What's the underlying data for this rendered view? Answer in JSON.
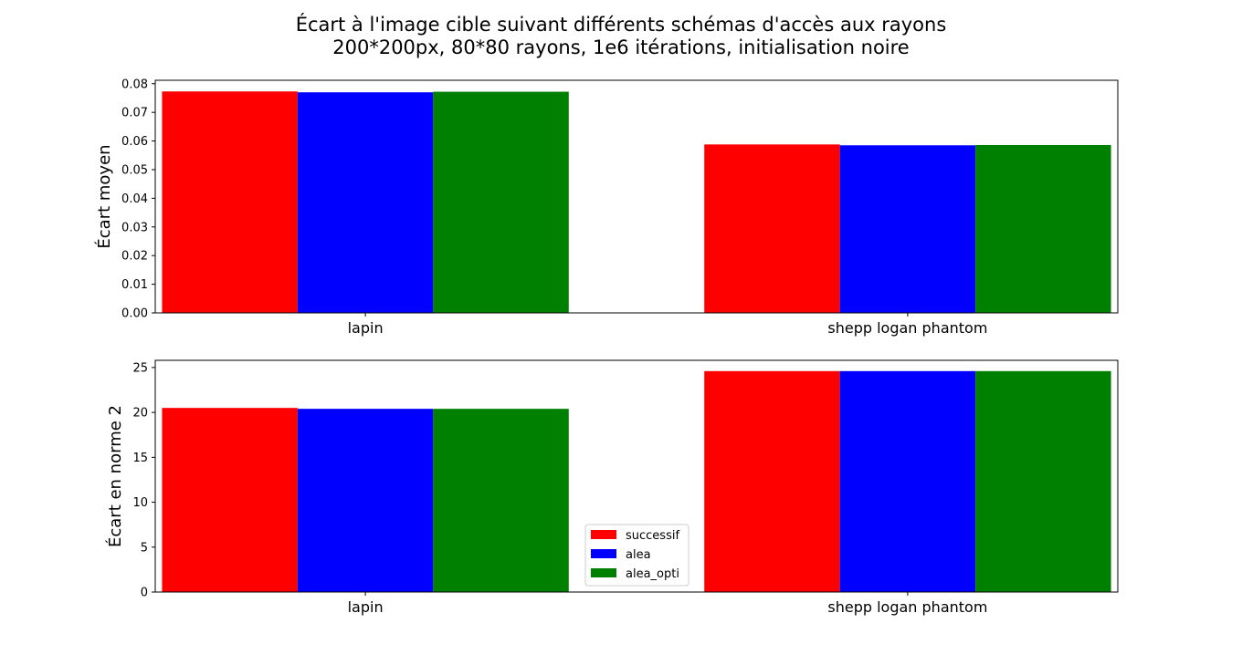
{
  "figure": {
    "title_line_1": "Écart à l'image cible suivant différents schémas d'accès aux rayons",
    "title_line_2": "200*200px, 80*80 rayons, 1e6 itérations, initialisation noire"
  },
  "chart_data": [
    {
      "type": "bar",
      "title": "",
      "xlabel": "",
      "ylabel": "Écart moyen",
      "categories": [
        "lapin",
        "shepp logan phantom"
      ],
      "series": [
        {
          "name": "successif",
          "color": "#ff0000",
          "values": [
            0.0773,
            0.0588
          ]
        },
        {
          "name": "alea",
          "color": "#0000ff",
          "values": [
            0.077,
            0.0585
          ]
        },
        {
          "name": "alea_opti",
          "color": "#008000",
          "values": [
            0.0772,
            0.0586
          ]
        }
      ],
      "ylim": [
        0,
        0.0812
      ],
      "yticks": [
        "0.00",
        "0.01",
        "0.02",
        "0.03",
        "0.04",
        "0.05",
        "0.06",
        "0.07",
        "0.08"
      ],
      "ytick_values": [
        0,
        0.01,
        0.02,
        0.03,
        0.04,
        0.05,
        0.06,
        0.07,
        0.08
      ],
      "grid": false,
      "legend": false
    },
    {
      "type": "bar",
      "title": "",
      "xlabel": "",
      "ylabel": "Écart en norme 2",
      "categories": [
        "lapin",
        "shepp logan phantom"
      ],
      "series": [
        {
          "name": "successif",
          "color": "#ff0000",
          "values": [
            20.5,
            24.6
          ]
        },
        {
          "name": "alea",
          "color": "#0000ff",
          "values": [
            20.4,
            24.6
          ]
        },
        {
          "name": "alea_opti",
          "color": "#008000",
          "values": [
            20.4,
            24.6
          ]
        }
      ],
      "ylim": [
        0,
        25.8
      ],
      "yticks": [
        "0",
        "5",
        "10",
        "15",
        "20",
        "25"
      ],
      "ytick_values": [
        0,
        5,
        10,
        15,
        20,
        25
      ],
      "grid": false,
      "legend": true,
      "legend_position": "lower center"
    }
  ]
}
